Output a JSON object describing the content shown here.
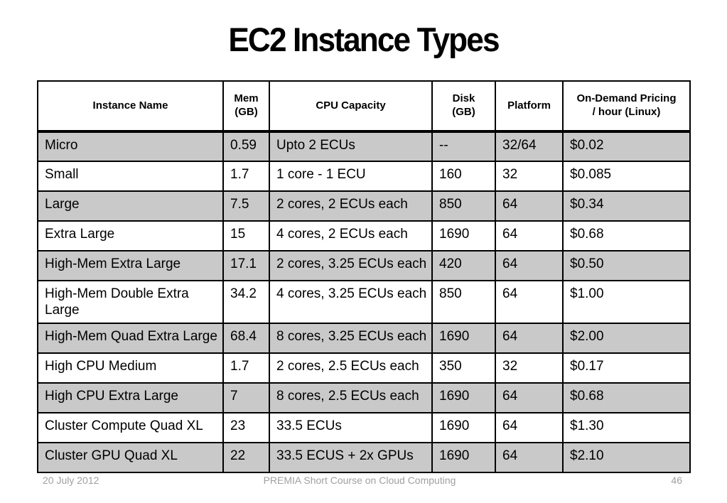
{
  "slide": {
    "title": "EC2 Instance Types"
  },
  "table": {
    "columns": [
      "Instance Name",
      "Mem\n(GB)",
      "CPU Capacity",
      "Disk\n(GB)",
      "Platform",
      "On-Demand Pricing\n/ hour (Linux)"
    ],
    "rows": [
      [
        "Micro",
        "0.59",
        "Upto 2 ECUs",
        "--",
        "32/64",
        "$0.02"
      ],
      [
        "Small",
        "1.7",
        "1 core - 1 ECU",
        "160",
        "32",
        "$0.085"
      ],
      [
        "Large",
        "7.5",
        "2 cores, 2 ECUs each",
        "850",
        "64",
        "$0.34"
      ],
      [
        "Extra Large",
        "15",
        "4 cores, 2 ECUs each",
        "1690",
        "64",
        "$0.68"
      ],
      [
        "High-Mem Extra Large",
        "17.1",
        "2 cores, 3.25 ECUs each",
        "420",
        "64",
        "$0.50"
      ],
      [
        "High-Mem Double Extra Large",
        "34.2",
        "4 cores, 3.25 ECUs each",
        "850",
        "64",
        "$1.00"
      ],
      [
        "High-Mem Quad Extra Large",
        "68.4",
        "8 cores, 3.25 ECUs each",
        "1690",
        "64",
        "$2.00"
      ],
      [
        "High CPU Medium",
        "1.7",
        "2 cores, 2.5 ECUs each",
        "350",
        "32",
        "$0.17"
      ],
      [
        "High CPU Extra Large",
        "7",
        "8 cores, 2.5 ECUs each",
        "1690",
        "64",
        "$0.68"
      ],
      [
        "Cluster Compute Quad XL",
        "23",
        "33.5 ECUs",
        "1690",
        "64",
        "$1.30"
      ],
      [
        "Cluster GPU Quad XL",
        "22",
        "33.5 ECUS + 2x GPUs",
        "1690",
        "64",
        "$2.10"
      ]
    ]
  },
  "footer": {
    "date": "20 July 2012",
    "course": "PREMIA Short Course on Cloud Computing",
    "page": "46"
  },
  "colors": {
    "shaded_row": "#c9c9c9",
    "plain_row": "#ffffff",
    "border": "#000000",
    "footer_text": "#a0a0a0",
    "title_text": "#000000"
  }
}
